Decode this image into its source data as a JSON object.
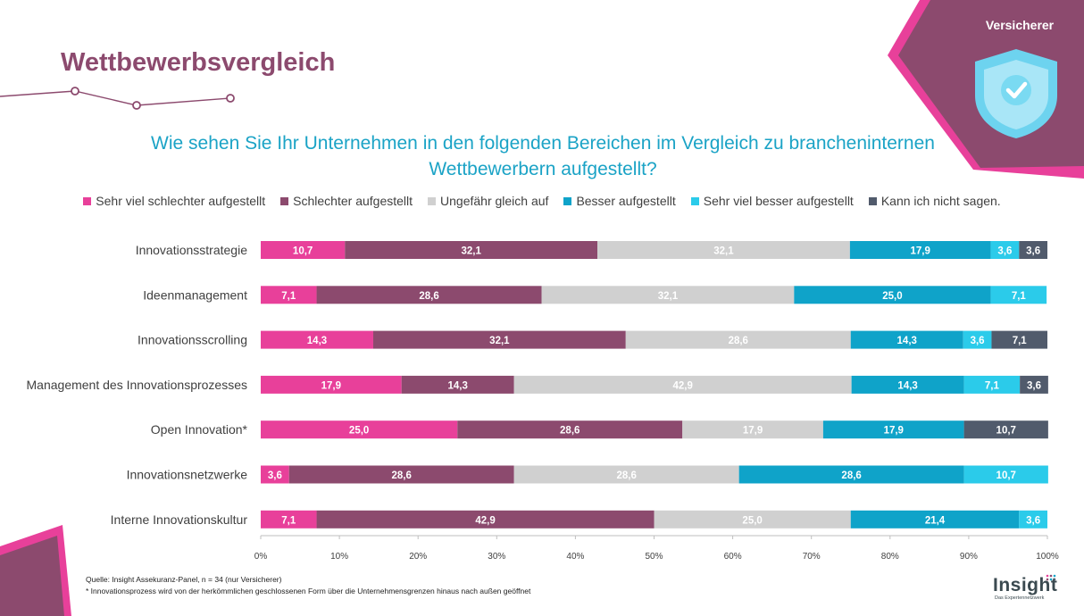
{
  "page": {
    "title": "Wettbewerbsvergleich",
    "badge": "Versicherer",
    "question_line1": "Wie sehen Sie Ihr Unternehmen in den folgenden Bereichen im Vergleich zu brancheninternen",
    "question_line2": "Wettbewerbern aufgestellt?",
    "footnote_source": "Quelle: Insight Assekuranz-Panel, n = 34 (nur Versicherer)",
    "footnote_note": "* Innovationsprozess wird von der herkömmlichen geschlossenen Form über die Unternehmensgrenzen hinaus nach außen geöffnet",
    "logo_text": "Insight",
    "logo_subtext": "Das Expertennetzwerk"
  },
  "colors": {
    "brand": "#8C4A6E",
    "accent_pink": "#E8409A",
    "question": "#1BA3C6"
  },
  "icons": [
    "shield-check-icon"
  ],
  "chart_data": {
    "type": "bar",
    "orientation": "horizontal",
    "stacked": true,
    "percent": true,
    "categories": [
      "Innovationsstrategie",
      "Ideenmanagement",
      "Innovationsscrolling",
      "Management des Innovationsprozesses",
      "Open Innovation*",
      "Innovationsnetzwerke",
      "Interne Innovationskultur"
    ],
    "series": [
      {
        "name": "Sehr viel schlechter aufgestellt",
        "color": "#E8409A",
        "labels": [
          "10,7",
          "7,1",
          "14,3",
          "17,9",
          "25,0",
          "3,6",
          "7,1"
        ],
        "values": [
          10.7,
          7.1,
          14.3,
          17.9,
          25.0,
          3.6,
          7.1
        ]
      },
      {
        "name": "Schlechter aufgestellt",
        "color": "#8C4A6E",
        "labels": [
          "32,1",
          "28,6",
          "32,1",
          "14,3",
          "28,6",
          "28,6",
          "42,9"
        ],
        "values": [
          32.1,
          28.6,
          32.1,
          14.3,
          28.6,
          28.6,
          42.9
        ]
      },
      {
        "name": "Ungefähr gleich auf",
        "color": "#D0D0D0",
        "labels": [
          "32,1",
          "32,1",
          "28,6",
          "42,9",
          "17,9",
          "28,6",
          "25,0"
        ],
        "values": [
          32.1,
          32.1,
          28.6,
          42.9,
          17.9,
          28.6,
          25.0
        ]
      },
      {
        "name": "Besser aufgestellt",
        "color": "#0FA3C9",
        "labels": [
          "17,9",
          "25,0",
          "14,3",
          "14,3",
          "17,9",
          "28,6",
          "21,4"
        ],
        "values": [
          17.9,
          25.0,
          14.3,
          14.3,
          17.9,
          28.6,
          21.4
        ]
      },
      {
        "name": "Sehr viel besser aufgestellt",
        "color": "#2BCBEA",
        "labels": [
          "3,6",
          "7,1",
          "3,6",
          "7,1",
          "",
          "10,7",
          "3,6"
        ],
        "values": [
          3.6,
          7.1,
          3.6,
          7.1,
          0,
          10.7,
          3.6
        ]
      },
      {
        "name": "Kann ich nicht sagen.",
        "color": "#515B6C",
        "labels": [
          "3,6",
          "",
          "7,1",
          "3,6",
          "10,7",
          "",
          ""
        ],
        "values": [
          3.6,
          0,
          7.1,
          3.6,
          10.7,
          0,
          0
        ]
      }
    ],
    "x_ticks": [
      "0%",
      "10%",
      "20%",
      "30%",
      "40%",
      "50%",
      "60%",
      "70%",
      "80%",
      "90%",
      "100%"
    ],
    "xlim": [
      0,
      100
    ],
    "legend_position": "top",
    "grid": false
  }
}
